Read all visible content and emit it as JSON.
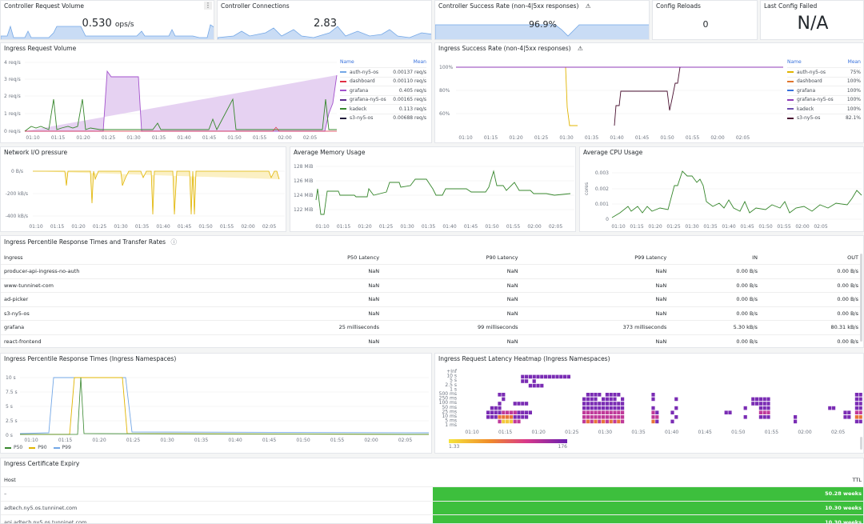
{
  "colors": {
    "accent": "#3871dc",
    "green": "#37872d",
    "yellow": "#e0b400",
    "purple": "#8f3bb8",
    "red": "#e02f44",
    "blue": "#73a7e6",
    "ttl_green": "#3dbf3d"
  },
  "stats": {
    "request_volume": {
      "title": "Controller Request Volume",
      "value": "0.530",
      "unit": "ops/s"
    },
    "connections": {
      "title": "Controller Connections",
      "value": "2.83"
    },
    "success_rate": {
      "title": "Controller Success Rate (non-4|5xx responses)",
      "value": "96.9",
      "unit": "%"
    },
    "config_reloads": {
      "title": "Config Reloads",
      "value": "0"
    },
    "last_config_failed": {
      "title": "Last Config Failed",
      "value": "N/A"
    }
  },
  "time_ticks": [
    "01:10",
    "01:15",
    "01:20",
    "01:25",
    "01:30",
    "01:35",
    "01:40",
    "01:45",
    "01:50",
    "01:55",
    "02:00",
    "02:05"
  ],
  "ingress_volume": {
    "title": "Ingress Request Volume",
    "legend_header": {
      "name": "Name",
      "mean": "Mean"
    },
    "y_ticks": [
      "4 req/s",
      "3 req/s",
      "2 req/s",
      "1 req/s",
      "0 req/s"
    ],
    "series": [
      {
        "name": "auth-ny5-os",
        "mean": "0.00137 req/s",
        "color": "#73a7e6"
      },
      {
        "name": "dashboard",
        "mean": "0.00110 req/s",
        "color": "#e02f44"
      },
      {
        "name": "grafana",
        "mean": "0.405 req/s",
        "color": "#a352cc"
      },
      {
        "name": "grafana-ny5-os",
        "mean": "0.00165 req/s",
        "color": "#5a2a8a"
      },
      {
        "name": "kadeck",
        "mean": "0.113 req/s",
        "color": "#37872d"
      },
      {
        "name": "s3-ny5-os",
        "mean": "0.00688 req/s",
        "color": "#1f1a3a"
      }
    ]
  },
  "ingress_success": {
    "title": "Ingress Success Rate (non-4|5xx responses)",
    "legend_header": {
      "name": "Name",
      "mean": "Mean"
    },
    "y_ticks": [
      "100%",
      "80%",
      "60%"
    ],
    "series": [
      {
        "name": "auth-ny5-os",
        "mean": "75%",
        "color": "#e0b400"
      },
      {
        "name": "dashboard",
        "mean": "100%",
        "color": "#e0752d"
      },
      {
        "name": "grafana",
        "mean": "100%",
        "color": "#3871dc"
      },
      {
        "name": "grafana-ny5-os",
        "mean": "100%",
        "color": "#8f3bb8"
      },
      {
        "name": "kadeck",
        "mean": "100%",
        "color": "#6e4fb0"
      },
      {
        "name": "s3-ny5-os",
        "mean": "82.1%",
        "color": "#4a1030"
      }
    ]
  },
  "network": {
    "title": "Network I/O pressure",
    "y_ticks": [
      "0 B/s",
      "-200 kB/s",
      "-400 kB/s"
    ]
  },
  "memory": {
    "title": "Average Memory Usage",
    "y_ticks": [
      "128 MiB",
      "126 MiB",
      "124 MiB",
      "122 MiB"
    ]
  },
  "cpu": {
    "title": "Average CPU Usage",
    "y_label": "cores",
    "y_ticks": [
      "0.003",
      "0.002",
      "0.001",
      "0"
    ]
  },
  "percentile_table": {
    "title": "Ingress Percentile Response Times and Transfer Rates",
    "columns": [
      "Ingress",
      "P50 Latency",
      "P90 Latency",
      "P99 Latency",
      "IN",
      "OUT"
    ],
    "rows": [
      [
        "producer-api-ingress-no-auth",
        "NaN",
        "NaN",
        "NaN",
        "0.00 B/s",
        "0.00 B/s"
      ],
      [
        "www-tunninet-com",
        "NaN",
        "NaN",
        "NaN",
        "0.00 B/s",
        "0.00 B/s"
      ],
      [
        "ad-picker",
        "NaN",
        "NaN",
        "NaN",
        "0.00 B/s",
        "0.00 B/s"
      ],
      [
        "s3-ny5-os",
        "NaN",
        "NaN",
        "NaN",
        "0.00 B/s",
        "0.00 B/s"
      ],
      [
        "grafana",
        "25 milliseconds",
        "99 milliseconds",
        "373 milliseconds",
        "5.30 kB/s",
        "80.31 kB/s"
      ],
      [
        "react-frontend",
        "NaN",
        "NaN",
        "NaN",
        "0.00 B/s",
        "0.00 B/s"
      ]
    ]
  },
  "response_times": {
    "title": "Ingress Percentile Response Times (Ingress Namespaces)",
    "y_ticks": [
      "10 s",
      "7.5 s",
      "5 s",
      "2.5 s",
      "0 s"
    ],
    "legend": [
      {
        "name": "P50",
        "color": "#37872d"
      },
      {
        "name": "P90",
        "color": "#e0b400"
      },
      {
        "name": "P99",
        "color": "#73a7e6"
      }
    ]
  },
  "heatmap": {
    "title": "Ingress Request Latency Heatmap (Ingress Namespaces)",
    "y_ticks": [
      "+Inf",
      "10 s",
      "5 s",
      "2.5 s",
      "1 s",
      "500 ms",
      "250 ms",
      "100 ms",
      "50 ms",
      "25 ms",
      "10 ms",
      "5 ms",
      "1 ms"
    ],
    "scale_min": "1.33",
    "scale_max": "176"
  },
  "cert_expiry": {
    "title": "Ingress Certificate Expiry",
    "columns": [
      "Host",
      "TTL"
    ],
    "rows": [
      {
        "host": "–",
        "ttl": "50.28 weeks"
      },
      {
        "host": "adtech.ny5.os.tunninet.com",
        "ttl": "10.30 weeks"
      },
      {
        "host": "api.adtech.ny5.os.tunninet.com",
        "ttl": "10.30 weeks"
      }
    ]
  }
}
